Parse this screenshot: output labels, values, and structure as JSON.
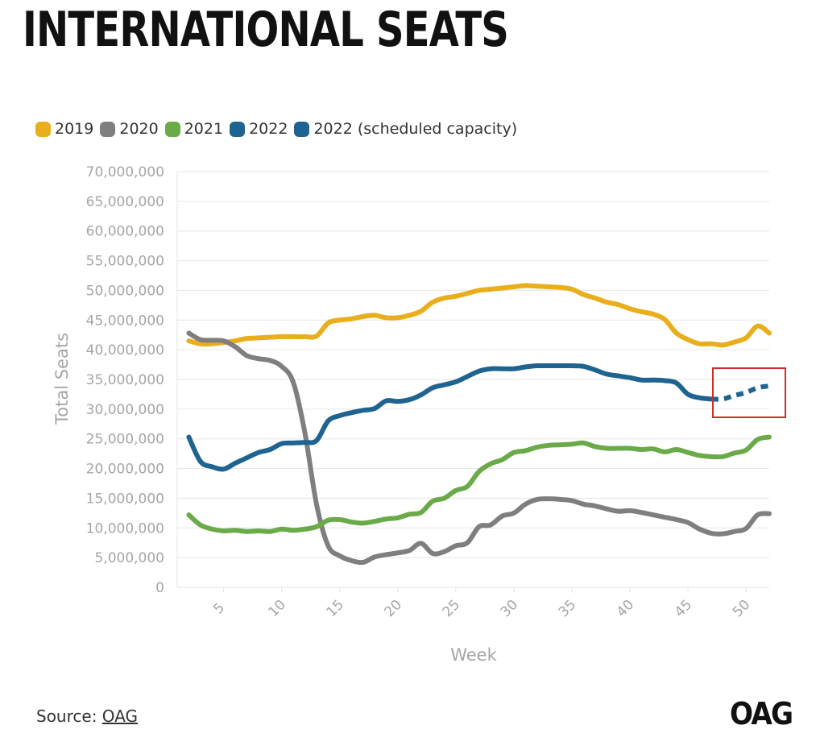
{
  "title": "INTERNATIONAL SEATS",
  "source": {
    "prefix": "Source: ",
    "link": "OAG"
  },
  "logo": "OAG",
  "colors": {
    "2019": "#e9ae1c",
    "2020": "#7f7f7f",
    "2021": "#6aaa48",
    "2022": "#1f6490",
    "2022 (scheduled capacity)": "#1f6490",
    "highlight_box": "#d42a2a",
    "grid": "#e6e6e6",
    "axis_text": "#a6a6a6"
  },
  "chart_data": {
    "type": "line",
    "xlabel": "Week",
    "ylabel": "Total Seats",
    "xlim": [
      1,
      52
    ],
    "ylim": [
      0,
      70000000
    ],
    "x_ticks": [
      "5",
      "10",
      "15",
      "20",
      "25",
      "30",
      "35",
      "40",
      "45",
      "50"
    ],
    "y_ticks": [
      "70,000,000",
      "65,000,000",
      "60,000,000",
      "55,000,000",
      "50,000,000",
      "45,000,000",
      "40,000,000",
      "35,000,000",
      "30,000,000",
      "25,000,000",
      "20,000,000",
      "15,000,000",
      "10,000,000",
      "5,000,000",
      "0"
    ],
    "legend_position": "top-left",
    "grid": true,
    "annotation": "red rectangle highlighting 2022 scheduled capacity",
    "series": [
      {
        "name": "2019",
        "x": [
          2,
          3,
          4,
          5,
          6,
          7,
          8,
          9,
          10,
          11,
          12,
          13,
          14,
          15,
          16,
          17,
          18,
          19,
          20,
          21,
          22,
          23,
          24,
          25,
          26,
          27,
          28,
          29,
          30,
          31,
          32,
          33,
          34,
          35,
          36,
          37,
          38,
          39,
          40,
          41,
          42,
          43,
          44,
          45,
          46,
          47,
          48,
          49,
          50,
          51,
          52
        ],
        "y": [
          41500000,
          41000000,
          41000000,
          41200000,
          41500000,
          41900000,
          42000000,
          42100000,
          42200000,
          42200000,
          42200000,
          42300000,
          44500000,
          45000000,
          45200000,
          45600000,
          45800000,
          45400000,
          45400000,
          45800000,
          46500000,
          48000000,
          48700000,
          49000000,
          49500000,
          50000000,
          50200000,
          50400000,
          50600000,
          50800000,
          50700000,
          50600000,
          50500000,
          50200000,
          49300000,
          48700000,
          48000000,
          47600000,
          46900000,
          46400000,
          46000000,
          45100000,
          42800000,
          41700000,
          41000000,
          41000000,
          40800000,
          41300000,
          42000000,
          44000000,
          42800000
        ]
      },
      {
        "name": "2020",
        "x": [
          2,
          3,
          4,
          5,
          6,
          7,
          8,
          9,
          10,
          11,
          12,
          13,
          14,
          15,
          16,
          17,
          18,
          19,
          20,
          21,
          22,
          23,
          24,
          25,
          26,
          27,
          28,
          29,
          30,
          31,
          32,
          33,
          34,
          35,
          36,
          37,
          38,
          39,
          40,
          41,
          42,
          43,
          44,
          45,
          46,
          47,
          48,
          49,
          50,
          51,
          52
        ],
        "y": [
          42800000,
          41700000,
          41600000,
          41500000,
          40500000,
          39000000,
          38500000,
          38200000,
          37200000,
          34500000,
          26000000,
          14000000,
          7000000,
          5300000,
          4500000,
          4200000,
          5100000,
          5500000,
          5800000,
          6200000,
          7400000,
          5700000,
          6000000,
          7000000,
          7500000,
          10200000,
          10500000,
          12000000,
          12500000,
          14000000,
          14800000,
          14900000,
          14800000,
          14600000,
          14000000,
          13700000,
          13200000,
          12800000,
          12900000,
          12600000,
          12200000,
          11800000,
          11400000,
          10900000,
          9800000,
          9100000,
          9000000,
          9400000,
          9900000,
          12200000,
          12400000
        ]
      },
      {
        "name": "2021",
        "x": [
          2,
          3,
          4,
          5,
          6,
          7,
          8,
          9,
          10,
          11,
          12,
          13,
          14,
          15,
          16,
          17,
          18,
          19,
          20,
          21,
          22,
          23,
          24,
          25,
          26,
          27,
          28,
          29,
          30,
          31,
          32,
          33,
          34,
          35,
          36,
          37,
          38,
          39,
          40,
          41,
          42,
          43,
          44,
          45,
          46,
          47,
          48,
          49,
          50,
          51,
          52
        ],
        "y": [
          12200000,
          10500000,
          9800000,
          9500000,
          9600000,
          9400000,
          9500000,
          9400000,
          9800000,
          9600000,
          9800000,
          10200000,
          11300000,
          11400000,
          11000000,
          10800000,
          11100000,
          11500000,
          11700000,
          12300000,
          12600000,
          14500000,
          15000000,
          16300000,
          17000000,
          19500000,
          20800000,
          21500000,
          22700000,
          23000000,
          23600000,
          23900000,
          24000000,
          24100000,
          24300000,
          23700000,
          23400000,
          23400000,
          23400000,
          23200000,
          23300000,
          22800000,
          23200000,
          22700000,
          22200000,
          22000000,
          22000000,
          22600000,
          23100000,
          24900000,
          25300000
        ]
      },
      {
        "name": "2022",
        "x": [
          2,
          3,
          4,
          5,
          6,
          7,
          8,
          9,
          10,
          11,
          12,
          13,
          14,
          15,
          16,
          17,
          18,
          19,
          20,
          21,
          22,
          23,
          24,
          25,
          26,
          27,
          28,
          29,
          30,
          31,
          32,
          33,
          34,
          35,
          36,
          37,
          38,
          39,
          40,
          41,
          42,
          43,
          44,
          45,
          46,
          47
        ],
        "y": [
          25300000,
          21200000,
          20300000,
          19900000,
          20900000,
          21800000,
          22700000,
          23200000,
          24200000,
          24300000,
          24400000,
          24700000,
          28000000,
          28900000,
          29400000,
          29800000,
          30100000,
          31400000,
          31300000,
          31600000,
          32400000,
          33600000,
          34100000,
          34600000,
          35500000,
          36400000,
          36800000,
          36800000,
          36800000,
          37100000,
          37300000,
          37300000,
          37300000,
          37300000,
          37200000,
          36600000,
          35900000,
          35600000,
          35300000,
          34900000,
          34900000,
          34800000,
          34400000,
          32500000,
          31900000,
          31700000
        ]
      },
      {
        "name": "2022 (scheduled capacity)",
        "x": [
          47,
          48,
          49,
          50,
          51,
          52
        ],
        "y": [
          31700000,
          31700000,
          32300000,
          32800000,
          33600000,
          33900000
        ]
      }
    ]
  }
}
